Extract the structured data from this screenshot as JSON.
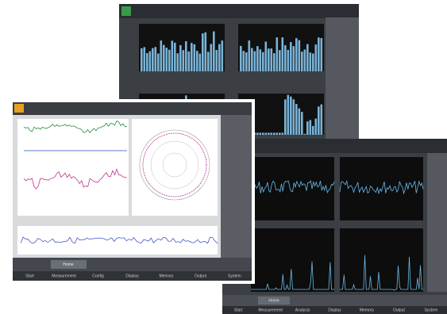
{
  "front": {
    "tab": "Home",
    "menu": [
      "Start",
      "Measurement",
      "Config",
      "Display",
      "Memory",
      "Output",
      "System"
    ]
  },
  "right": {
    "tab": "Home",
    "menu": [
      "Start",
      "Measurement",
      "Analysis",
      "Display",
      "Memory",
      "Output",
      "System"
    ]
  }
}
